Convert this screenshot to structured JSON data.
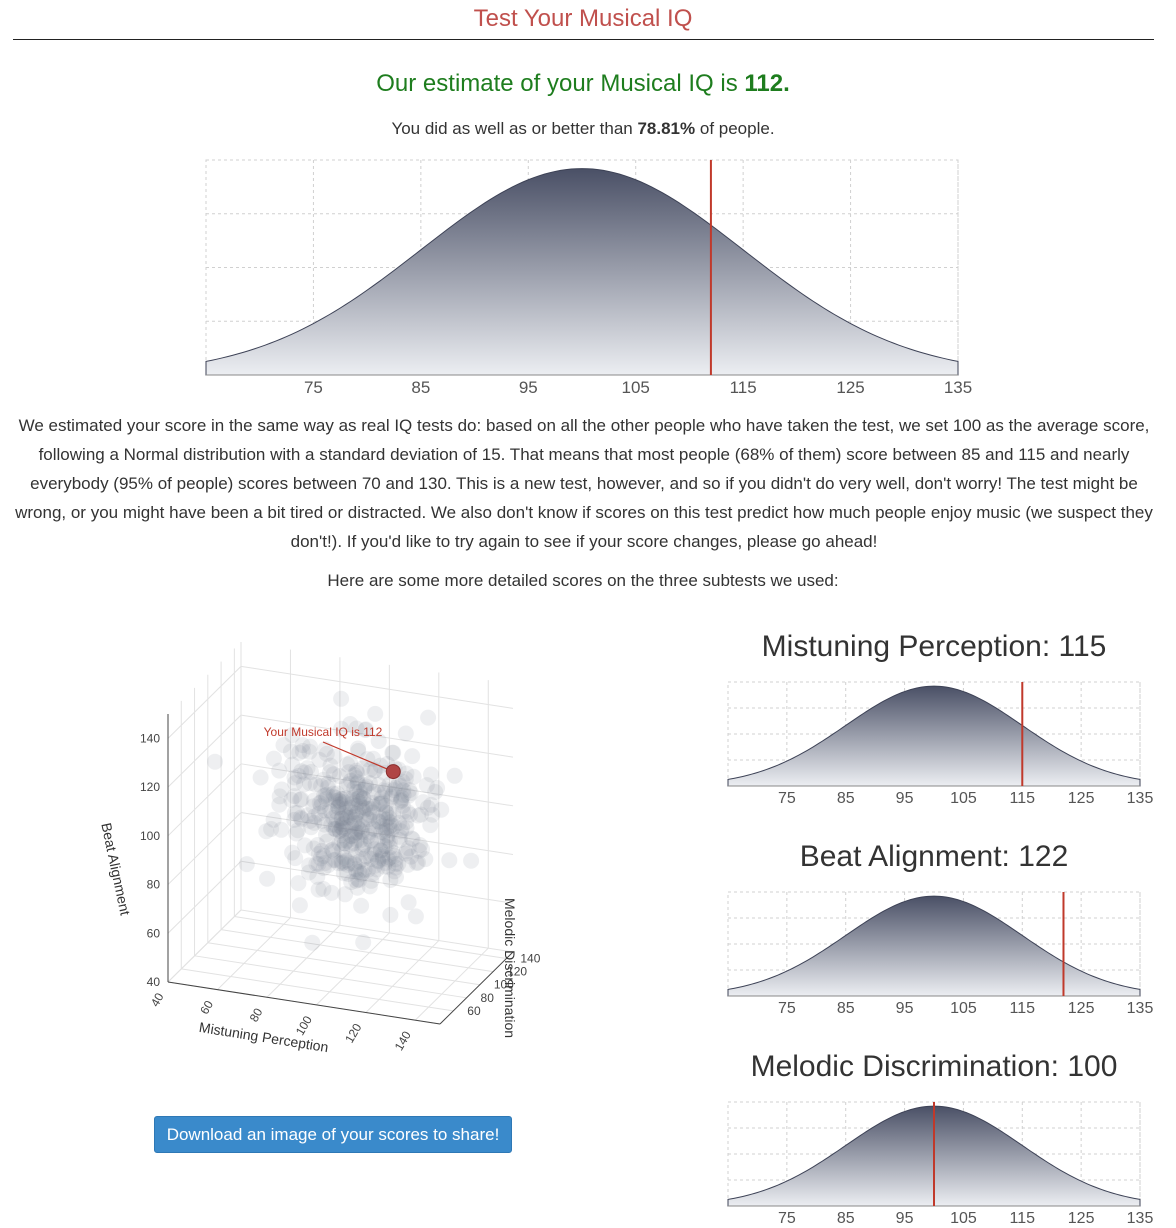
{
  "header": {
    "title": "Test Your Musical IQ"
  },
  "result": {
    "estimate_prefix": "Our estimate of your Musical IQ is ",
    "estimate_value": "112.",
    "percentile_prefix": "You did as well as or better than ",
    "percentile_value": "78.81%",
    "percentile_suffix": " of people."
  },
  "explanation": "We estimated your score in the same way as real IQ tests do: based on all the other people who have taken the test, we set 100 as the average score, following a Normal distribution with a standard deviation of 15. That means that most people (68% of them) score between 85 and 115 and nearly everybody (95% of people) scores between 70 and 130. This is a new test, however, and so if you didn't do very well, don't worry! The test might be wrong, or you might have been a bit tired or distracted. We also don't know if scores on this test predict how much people enjoy music (we suspect they don't!). If you'd like to try again to see if your score changes, please go ahead!",
  "subtests_intro": "Here are some more detailed scores on the three subtests we used:",
  "download_button": "Download an image of your scores to share!",
  "colors": {
    "title": "#c0504d",
    "estimate": "#1e7d1e",
    "marker": "#c0392b",
    "curve_dark": "#4a5066",
    "curve_light": "#eceef2",
    "button": "#3a8acb"
  },
  "subtests": [
    {
      "title": "Mistuning Perception: 115"
    },
    {
      "title": "Beat Alignment: 122"
    },
    {
      "title": "Melodic Discrimination: 100"
    }
  ],
  "chart_data": [
    {
      "type": "area",
      "distribution": "normal",
      "mean": 100,
      "sd": 15,
      "xlim": [
        65,
        135
      ],
      "xticks": [
        75,
        85,
        95,
        105,
        115,
        125,
        135
      ],
      "marker": 112,
      "grid": true
    },
    {
      "type": "area",
      "distribution": "normal",
      "mean": 100,
      "sd": 15,
      "xlim": [
        65,
        135
      ],
      "xticks": [
        75,
        85,
        95,
        105,
        115,
        125,
        135
      ],
      "marker": 115,
      "grid": true
    },
    {
      "type": "area",
      "distribution": "normal",
      "mean": 100,
      "sd": 15,
      "xlim": [
        65,
        135
      ],
      "xticks": [
        75,
        85,
        95,
        105,
        115,
        125,
        135
      ],
      "marker": 122,
      "grid": true
    },
    {
      "type": "area",
      "distribution": "normal",
      "mean": 100,
      "sd": 15,
      "xlim": [
        65,
        135
      ],
      "xticks": [
        75,
        85,
        95,
        105,
        115,
        125,
        135
      ],
      "marker": 100,
      "grid": true
    },
    {
      "type": "scatter",
      "subtype": "3d",
      "axes": {
        "x": {
          "label": "Mistuning Perception",
          "ticks": [
            "40",
            "60",
            "80",
            "100",
            "120",
            "140"
          ]
        },
        "y": {
          "label": "Melodic Discrimination",
          "ticks": [
            "60",
            "80",
            "100",
            "120",
            "140"
          ]
        },
        "z": {
          "label": "Beat Alignment",
          "ticks": [
            "40",
            "60",
            "80",
            "100",
            "120",
            "140"
          ]
        }
      },
      "highlight": {
        "x": 115,
        "y": 100,
        "z": 122,
        "label": "Your Musical IQ is 112"
      },
      "cloud": {
        "mean": 100,
        "sd": 15
      }
    }
  ]
}
